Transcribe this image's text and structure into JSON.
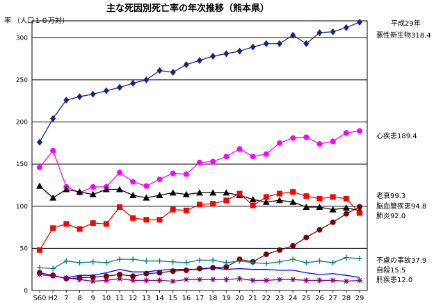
{
  "chart_data": {
    "type": "line",
    "title": "主な死因別死亡率の年次推移（熊本県）",
    "ylabel": "率 （人口１０万対）",
    "xlabel": "",
    "ylim": [
      0,
      320
    ],
    "yticks": [
      0,
      50,
      100,
      150,
      200,
      250,
      300
    ],
    "grid": true,
    "categories": [
      "S60",
      "H2",
      "7",
      "8",
      "9",
      "10",
      "11",
      "12",
      "13",
      "14",
      "15",
      "16",
      "17",
      "18",
      "19",
      "20",
      "21",
      "22",
      "23",
      "24",
      "25",
      "26",
      "27",
      "28",
      "29"
    ],
    "legend_header": "平成29年",
    "series": [
      {
        "name": "悪性新生物",
        "legend_label": "悪性新生物318.4",
        "color": "#1a237e",
        "marker": "diamond",
        "values": [
          176,
          204,
          226,
          230,
          233,
          237,
          241,
          246,
          250,
          261,
          259,
          268,
          273,
          278,
          281,
          284,
          289,
          293,
          293,
          303,
          293,
          306,
          307,
          312,
          318.4
        ]
      },
      {
        "name": "心疾患",
        "legend_label": "心疾患189.4",
        "color": "#ff00ff",
        "marker": "circle",
        "values": [
          146,
          166,
          123,
          116,
          123,
          123,
          140,
          129,
          124,
          132,
          139,
          138,
          152,
          153,
          159,
          168,
          159,
          162,
          175,
          181,
          182,
          174,
          177,
          187,
          189.4
        ]
      },
      {
        "name": "老衰",
        "legend_label": "老衰99.3",
        "color": "#7b0000",
        "marker": "circle",
        "values": [
          21,
          18,
          14,
          15,
          16,
          17,
          19,
          17,
          20,
          21,
          23,
          24,
          26,
          27,
          28,
          37,
          34,
          43,
          48,
          53,
          63,
          72,
          81,
          91,
          99.3
        ]
      },
      {
        "name": "脳血管疾患",
        "legend_label": "脳血管疾患94.8",
        "color": "#000000",
        "marker": "triangle",
        "values": [
          124,
          110,
          120,
          117,
          114,
          120,
          120,
          113,
          110,
          113,
          116,
          114,
          116,
          116,
          116,
          113,
          108,
          105,
          107,
          105,
          99,
          99,
          96,
          98,
          94.8
        ]
      },
      {
        "name": "肺炎",
        "legend_label": "肺炎92.0",
        "color": "#ff0000",
        "marker": "square",
        "values": [
          48,
          74,
          79,
          73,
          80,
          79,
          99,
          86,
          84,
          84,
          96,
          95,
          102,
          103,
          107,
          115,
          101,
          111,
          115,
          117,
          112,
          109,
          111,
          109,
          92.0
        ]
      },
      {
        "name": "不慮の事故",
        "legend_label": "不慮の事故37.9",
        "color": "#008080",
        "marker": "plus",
        "values": [
          27,
          26,
          35,
          33,
          34,
          33,
          37,
          37,
          35,
          35,
          34,
          33,
          36,
          36,
          33,
          35,
          33,
          32,
          34,
          37,
          33,
          35,
          33,
          39,
          37.9
        ]
      },
      {
        "name": "自殺",
        "legend_label": "自殺15.5",
        "color": "#0000ff",
        "marker": "none",
        "values": [
          19,
          17,
          15,
          18,
          18,
          21,
          25,
          22,
          22,
          24,
          25,
          25,
          25,
          27,
          25,
          26,
          25,
          25,
          24,
          24,
          21,
          19,
          20,
          18,
          15.5
        ]
      },
      {
        "name": "肝疾患",
        "legend_label": "肝疾患12.0",
        "color": "#800080",
        "marker": "asterisk",
        "values": [
          19,
          17,
          15,
          13,
          11,
          12,
          14,
          12,
          12,
          12,
          11,
          13,
          13,
          13,
          13,
          14,
          12,
          12,
          13,
          13,
          12,
          12,
          12,
          11,
          12.0
        ]
      }
    ]
  }
}
